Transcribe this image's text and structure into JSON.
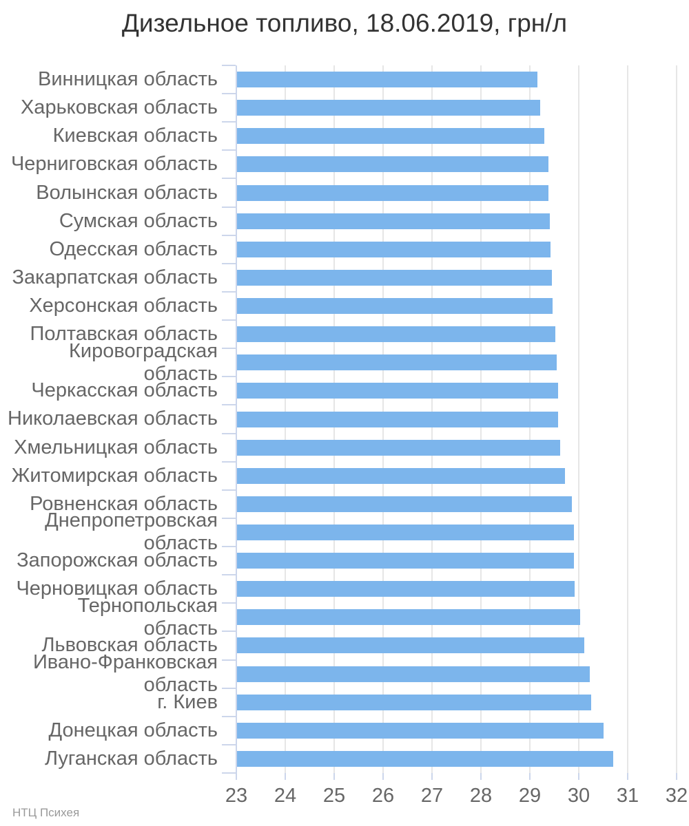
{
  "chart_data": {
    "type": "bar",
    "orientation": "horizontal",
    "title": "Дизельное топливо, 18.06.2019, грн/л",
    "categories": [
      "Винницкая область",
      "Харьковская область",
      "Киевская область",
      "Черниговская область",
      "Волынская область",
      "Сумская область",
      "Одесская область",
      "Закарпатская область",
      "Херсонская область",
      "Полтавская область",
      "Кировоградская область",
      "Черкасская область",
      "Николаевская область",
      "Хмельницкая область",
      "Житомирская область",
      "Ровненская область",
      "Днепропетровская область",
      "Запорожская область",
      "Черновицкая область",
      "Тернопольская область",
      "Львовская область",
      "Ивано-Франковская область",
      "г. Киев",
      "Донецкая область",
      "Луганская область"
    ],
    "values": [
      29.14,
      29.2,
      29.28,
      29.36,
      29.37,
      29.4,
      29.41,
      29.43,
      29.45,
      29.51,
      29.53,
      29.56,
      29.57,
      29.6,
      29.7,
      29.85,
      29.88,
      29.89,
      29.9,
      30.01,
      30.1,
      30.21,
      30.24,
      30.49,
      30.69
    ],
    "xlabel": "",
    "ylabel": "",
    "xlim": [
      23,
      32.07
    ],
    "xticks": [
      23,
      24,
      25,
      26,
      27,
      28,
      29,
      30,
      31,
      32
    ],
    "grid": true,
    "legend": "none",
    "bar_color": "#7cb5ec",
    "grid_color": "#e6e6e6",
    "axis_color": "#ccd6eb",
    "label_color": "#666666",
    "title_color": "#333333",
    "credit": "НТЦ Психея",
    "credit_color": "#999999"
  }
}
